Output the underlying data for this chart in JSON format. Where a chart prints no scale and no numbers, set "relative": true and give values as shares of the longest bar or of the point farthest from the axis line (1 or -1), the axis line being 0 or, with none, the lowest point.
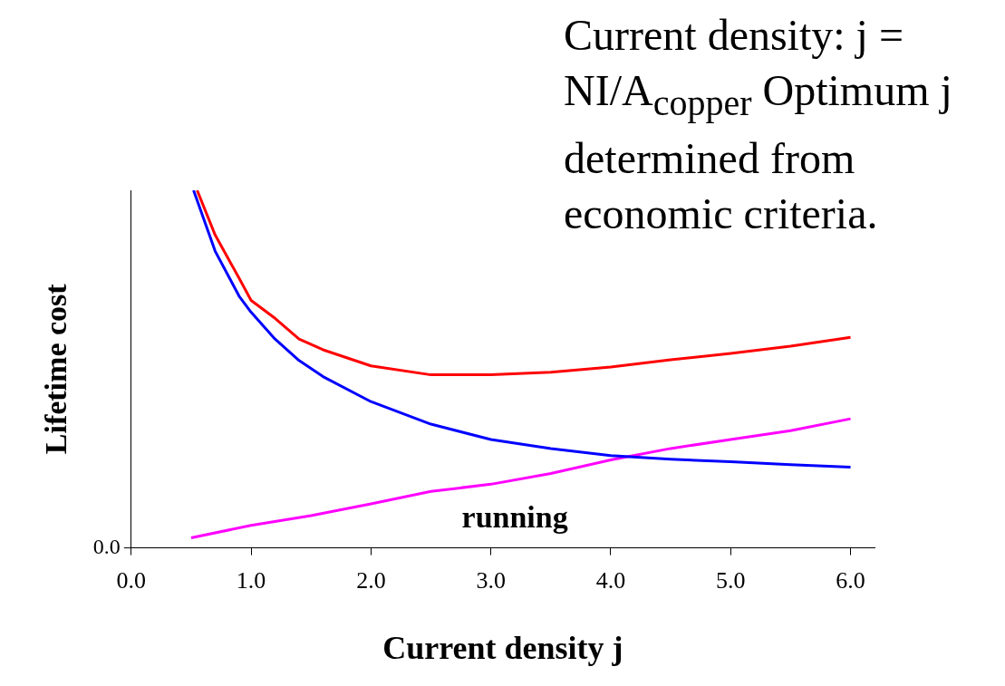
{
  "chart_data": {
    "type": "line",
    "relative": true,
    "title": "Current  density: j = NI/A$_{copper}$ Optimum  j determined  from economic  criteria.",
    "xlabel": "Current density j",
    "ylabel": "Lifetime cost",
    "xlim": [
      0,
      6.2
    ],
    "xticks": [
      {
        "value": 0,
        "label": "0.0"
      },
      {
        "value": 1,
        "label": "1.0"
      },
      {
        "value": 2,
        "label": "2.0"
      },
      {
        "value": 3,
        "label": "3.0"
      },
      {
        "value": 4,
        "label": "4.0"
      },
      {
        "value": 5,
        "label": "5.0"
      },
      {
        "value": 6,
        "label": "6.0"
      }
    ],
    "grid": false,
    "legend": false,
    "marker": "none",
    "line_style": "solid",
    "annotations": [
      "0.0",
      "running"
    ],
    "series": [
      {
        "color": "#ff0000",
        "x": [
          0.55,
          0.7,
          0.9,
          1.0,
          1.2,
          1.4,
          1.6,
          2.0,
          2.5,
          3.0,
          3.5,
          4.0,
          4.5,
          5.0,
          5.5,
          6.0
        ],
        "values": [
          1.0,
          0.875,
          0.754,
          0.692,
          0.642,
          0.584,
          0.554,
          0.509,
          0.484,
          0.484,
          0.491,
          0.506,
          0.526,
          0.544,
          0.564,
          0.589
        ]
      },
      {
        "color": "#0000ff",
        "x": [
          0.52,
          0.7,
          0.9,
          1.0,
          1.2,
          1.4,
          1.6,
          2.0,
          2.5,
          3.0,
          3.5,
          4.0,
          4.5,
          5.0,
          5.5,
          6.0
        ],
        "values": [
          1.0,
          0.83,
          0.704,
          0.659,
          0.584,
          0.524,
          0.479,
          0.409,
          0.346,
          0.303,
          0.278,
          0.258,
          0.248,
          0.241,
          0.233,
          0.226
        ]
      },
      {
        "color": "#ff00ff",
        "x": [
          0.5,
          1.0,
          1.5,
          2.0,
          2.5,
          3.0,
          3.5,
          4.0,
          4.5,
          5.0,
          5.5,
          6.0
        ],
        "values": [
          0.028,
          0.063,
          0.09,
          0.123,
          0.158,
          0.178,
          0.208,
          0.246,
          0.278,
          0.303,
          0.328,
          0.361
        ]
      }
    ]
  }
}
